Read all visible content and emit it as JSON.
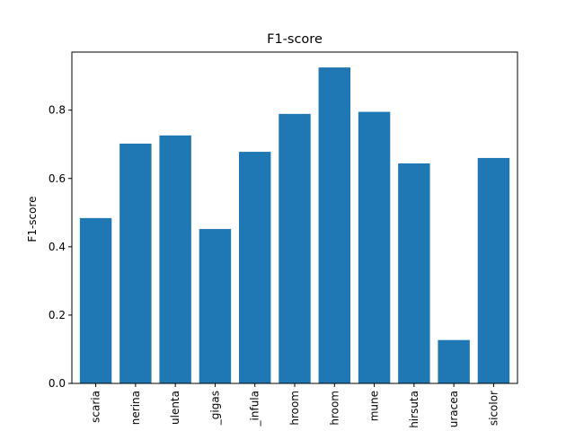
{
  "chart_data": {
    "type": "bar",
    "title": "F1-score",
    "xlabel": "",
    "ylabel": "F1-score",
    "categories": [
      "scaria",
      "nerina",
      "ulenta",
      "_gigas",
      "_infula",
      "hroom",
      "hroom",
      "mune",
      "hirsuta",
      "uracea",
      "sicolor"
    ],
    "values": [
      0.484,
      0.702,
      0.726,
      0.452,
      0.678,
      0.789,
      0.925,
      0.795,
      0.644,
      0.127,
      0.66
    ],
    "ylim": [
      0,
      0.97
    ],
    "yticks": [
      0.0,
      0.2,
      0.4,
      0.6,
      0.8
    ],
    "ytick_labels": [
      "0.0",
      "0.2",
      "0.4",
      "0.6",
      "0.8"
    ],
    "bar_color": "#1f77b4",
    "grid": false,
    "legend": "none"
  }
}
